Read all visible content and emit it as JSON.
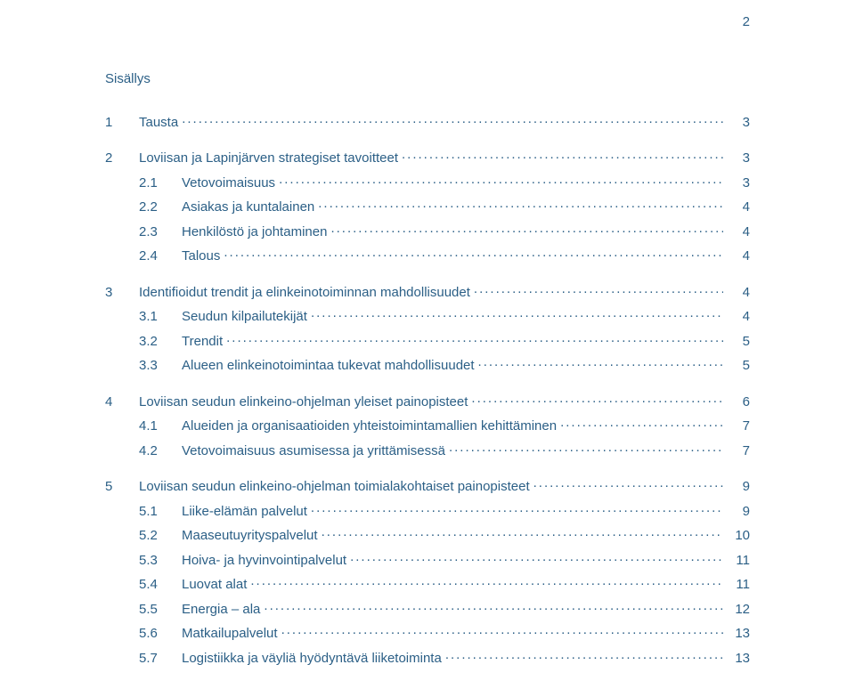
{
  "page_number": "2",
  "title": "Sisällys",
  "text_color": "#2b5f86",
  "background_color": "#ffffff",
  "font_family": "Verdana",
  "font_size_pt": 11,
  "toc": [
    {
      "type": "section",
      "num": "1",
      "label": "Tausta",
      "page": "3"
    },
    {
      "type": "section",
      "num": "2",
      "label": "Loviisan ja Lapinjärven strategiset tavoitteet",
      "page": "3"
    },
    {
      "type": "sub",
      "num": "2.1",
      "label": "Vetovoimaisuus",
      "page": "3"
    },
    {
      "type": "sub",
      "num": "2.2",
      "label": "Asiakas ja kuntalainen",
      "page": "4"
    },
    {
      "type": "sub",
      "num": "2.3",
      "label": "Henkilöstö ja johtaminen",
      "page": "4"
    },
    {
      "type": "sub",
      "num": "2.4",
      "label": "Talous",
      "page": "4"
    },
    {
      "type": "section",
      "num": "3",
      "label": "Identifioidut trendit ja elinkeinotoiminnan mahdollisuudet",
      "page": "4"
    },
    {
      "type": "sub",
      "num": "3.1",
      "label": "Seudun kilpailutekijät",
      "page": "4"
    },
    {
      "type": "sub",
      "num": "3.2",
      "label": "Trendit",
      "page": "5"
    },
    {
      "type": "sub",
      "num": "3.3",
      "label": "Alueen elinkeinotoimintaa tukevat mahdollisuudet",
      "page": "5"
    },
    {
      "type": "section",
      "num": "4",
      "label": "Loviisan seudun elinkeino-ohjelman yleiset painopisteet",
      "page": "6"
    },
    {
      "type": "sub",
      "num": "4.1",
      "label": "Alueiden ja organisaatioiden yhteistoimintamallien kehittäminen",
      "page": "7"
    },
    {
      "type": "sub",
      "num": "4.2",
      "label": "Vetovoimaisuus asumisessa ja yrittämisessä",
      "page": "7"
    },
    {
      "type": "section",
      "num": "5",
      "label": "Loviisan seudun elinkeino-ohjelman toimialakohtaiset painopisteet",
      "page": "9"
    },
    {
      "type": "sub",
      "num": "5.1",
      "label": "Liike-elämän palvelut",
      "page": "9"
    },
    {
      "type": "sub",
      "num": "5.2",
      "label": "Maaseutuyrityspalvelut",
      "page": "10"
    },
    {
      "type": "sub",
      "num": "5.3",
      "label": "Hoiva- ja hyvinvointipalvelut",
      "page": "11"
    },
    {
      "type": "sub",
      "num": "5.4",
      "label": "Luovat alat",
      "page": "11"
    },
    {
      "type": "sub",
      "num": "5.5",
      "label": "Energia – ala",
      "page": "12"
    },
    {
      "type": "sub",
      "num": "5.6",
      "label": "Matkailupalvelut",
      "page": "13"
    },
    {
      "type": "sub",
      "num": "5.7",
      "label": "Logistiikka ja väyliä hyödyntävä liiketoiminta",
      "page": "13"
    }
  ]
}
